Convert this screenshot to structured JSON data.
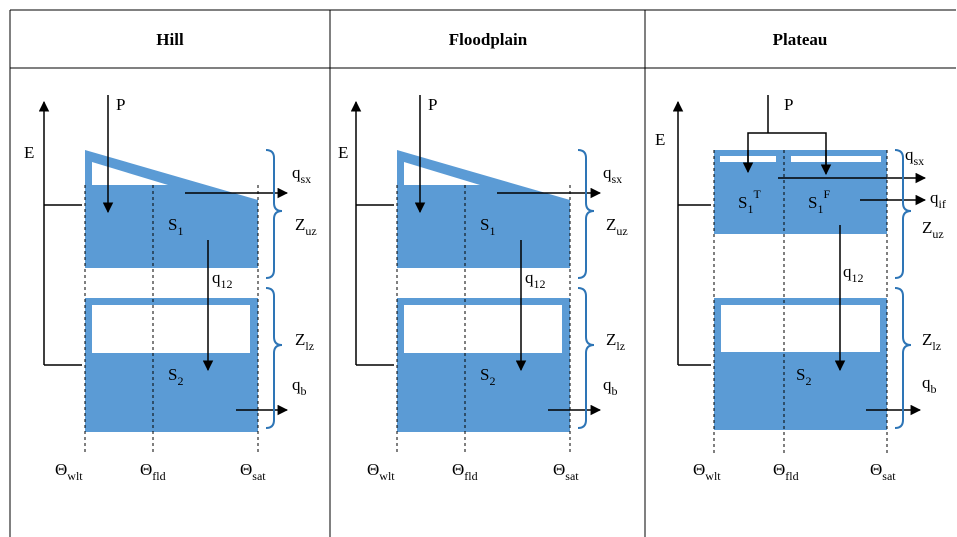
{
  "headers": {
    "hill": "Hill",
    "floodplain": "Floodplain",
    "plateau": "Plateau"
  },
  "labels": {
    "precip": "P",
    "elevation": "E",
    "q": "q",
    "S": "S",
    "Z": "Z",
    "theta": "Θ",
    "sub_sx": "sx",
    "sub_uz": "uz",
    "sub_lz": "lz",
    "sub_12": "12",
    "sub_b": "b",
    "sub_if": "if",
    "sub_1": "1",
    "sub_2": "2",
    "sub_wlt": "wlt",
    "sub_fld": "fld",
    "sub_sat": "sat",
    "sup_T": "T",
    "sup_F": "F"
  },
  "colors": {
    "storage_fill": "#5b9bd5",
    "border": "#000000",
    "bracket": "#2e75b6"
  }
}
